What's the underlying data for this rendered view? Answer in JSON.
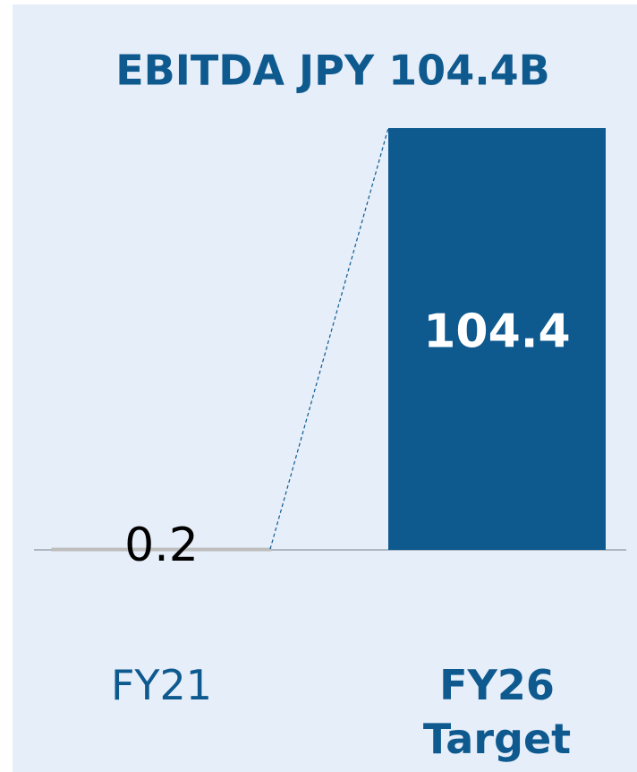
{
  "chart_data": {
    "type": "bar",
    "title": "EBITDA JPY 104.4B",
    "categories": [
      "FY21",
      "FY26 Target"
    ],
    "values": [
      0.2,
      104.4
    ],
    "colors": [
      "#dcdcdc",
      "#0e5a8f"
    ]
  }
}
